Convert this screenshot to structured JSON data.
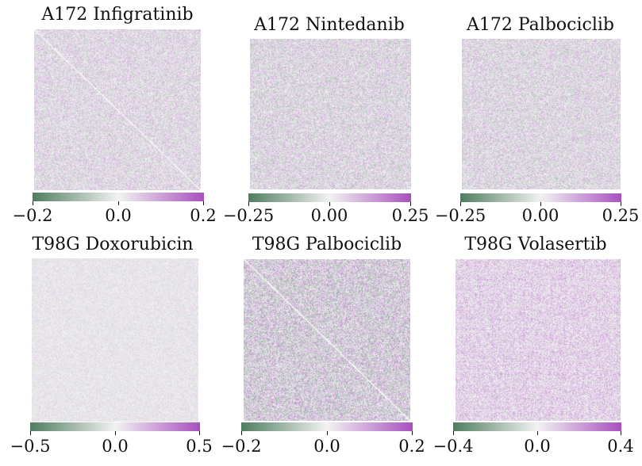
{
  "colors": {
    "low": "#4f7d5f",
    "mid": "#f2f2f2",
    "high": "#a84fbf"
  },
  "chart_data": [
    {
      "type": "heatmap",
      "title": "A172 Infigratinib",
      "vmin": -0.2,
      "vmax": 0.2,
      "ticks": [
        -0.2,
        0.0,
        0.2
      ],
      "tick_labels": [
        "−0.2",
        "0.0",
        "0.2"
      ]
    },
    {
      "type": "heatmap",
      "title": "A172 Nintedanib",
      "vmin": -0.25,
      "vmax": 0.25,
      "ticks": [
        -0.25,
        0.0,
        0.25
      ],
      "tick_labels": [
        "−0.25",
        "0.00",
        "0.25"
      ]
    },
    {
      "type": "heatmap",
      "title": "A172 Palbociclib",
      "vmin": -0.25,
      "vmax": 0.25,
      "ticks": [
        -0.25,
        0.0,
        0.25
      ],
      "tick_labels": [
        "−0.25",
        "0.00",
        "0.25"
      ]
    },
    {
      "type": "heatmap",
      "title": "T98G Doxorubicin",
      "vmin": -0.5,
      "vmax": 0.5,
      "ticks": [
        -0.5,
        0.0,
        0.5
      ],
      "tick_labels": [
        "−0.5",
        "0.0",
        "0.5"
      ]
    },
    {
      "type": "heatmap",
      "title": "T98G Palbociclib",
      "vmin": -0.2,
      "vmax": 0.2,
      "ticks": [
        -0.2,
        0.0,
        0.2
      ],
      "tick_labels": [
        "−0.2",
        "0.0",
        "0.2"
      ]
    },
    {
      "type": "heatmap",
      "title": "T98G Volasertib",
      "vmin": -0.4,
      "vmax": 0.4,
      "ticks": [
        -0.4,
        0.0,
        0.4
      ],
      "tick_labels": [
        "−0.4",
        "0.0",
        "0.4"
      ]
    }
  ]
}
